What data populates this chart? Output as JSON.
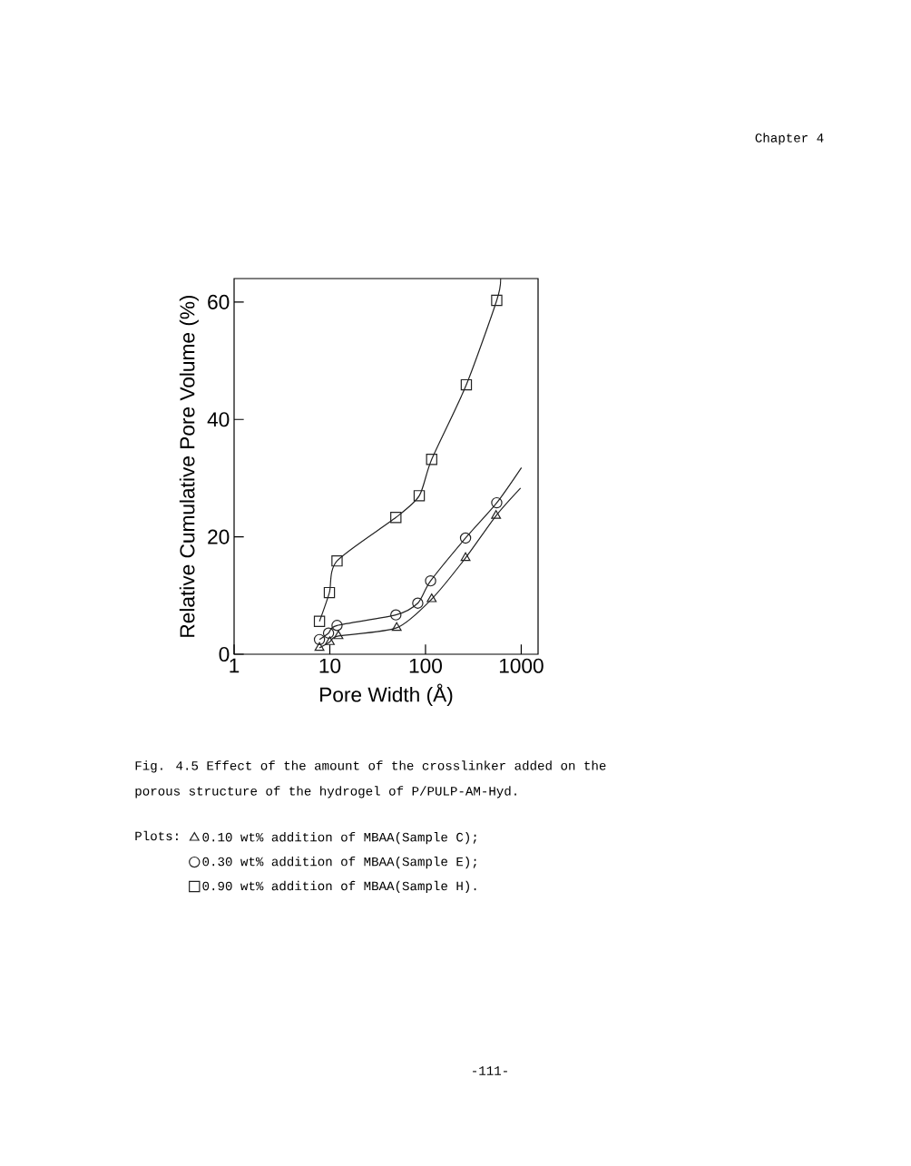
{
  "chart_data": {
    "type": "scatter",
    "xlabel": "Pore Width (Å)",
    "ylabel": "Relative Cumulative Pore Volume (%)",
    "legend_title": "Plots:",
    "legend": "bottom",
    "log": "x",
    "grid": false,
    "xlim": [
      1,
      1500
    ],
    "xticks": [
      1,
      10,
      100,
      1000
    ],
    "ylim": [
      0,
      64
    ],
    "yticks": [
      0,
      20,
      40,
      60
    ],
    "annotations": [
      "Chapter 4",
      "Fig. 4.5   Effect of the amount of the crosslinker  added on the porous structure of the hydrogel of P/PULP-AM-Hyd.",
      "-111-"
    ],
    "series": [
      {
        "name": "0.10 wt% addition of MBAA(Sample C);",
        "marker": "triangle",
        "color": "#222222",
        "x": [
          7.8,
          10,
          12.3,
          50,
          116,
          262,
          546
        ],
        "values": [
          1.1,
          2.1,
          3.1,
          4.5,
          9.4,
          16.4,
          23.6
        ]
      },
      {
        "name": "0.30 wt% addition of MBAA(Sample E);",
        "marker": "circle",
        "color": "#222222",
        "x": [
          7.8,
          9.7,
          11.9,
          49,
          83,
          113,
          262,
          555
        ],
        "values": [
          2.5,
          3.6,
          4.9,
          6.7,
          8.7,
          12.5,
          19.8,
          25.8
        ]
      },
      {
        "name": "0.90 wt% addition of MBAA(Sample H).",
        "marker": "square",
        "color": "#222222",
        "x": [
          7.8,
          9.9,
          11.9,
          49,
          86,
          116,
          267,
          555
        ],
        "values": [
          5.6,
          10.5,
          15.9,
          23.3,
          27,
          33.2,
          45.9,
          60.3
        ]
      },
      {
        "type": "line",
        "marker": "none",
        "color": "#222222",
        "x": [
          7.8,
          10,
          12.3,
          50,
          116,
          262,
          546,
          985
        ],
        "values": [
          1.1,
          2.1,
          3.1,
          4.5,
          9.4,
          16.4,
          23.6,
          28.3
        ]
      },
      {
        "type": "line",
        "marker": "none",
        "color": "#222222",
        "x": [
          7.8,
          9.7,
          11.9,
          49,
          83,
          113,
          262,
          555,
          1006
        ],
        "values": [
          2.5,
          3.6,
          4.9,
          6.7,
          8.7,
          12.5,
          19.8,
          25.8,
          31.8
        ]
      },
      {
        "type": "line",
        "marker": "none",
        "color": "#222222",
        "x": [
          7.8,
          9.9,
          11.9,
          49,
          86,
          116,
          267,
          555,
          610
        ],
        "values": [
          5.6,
          10.5,
          15.9,
          23.3,
          27,
          33.2,
          45.9,
          60.3,
          64
        ]
      }
    ]
  }
}
